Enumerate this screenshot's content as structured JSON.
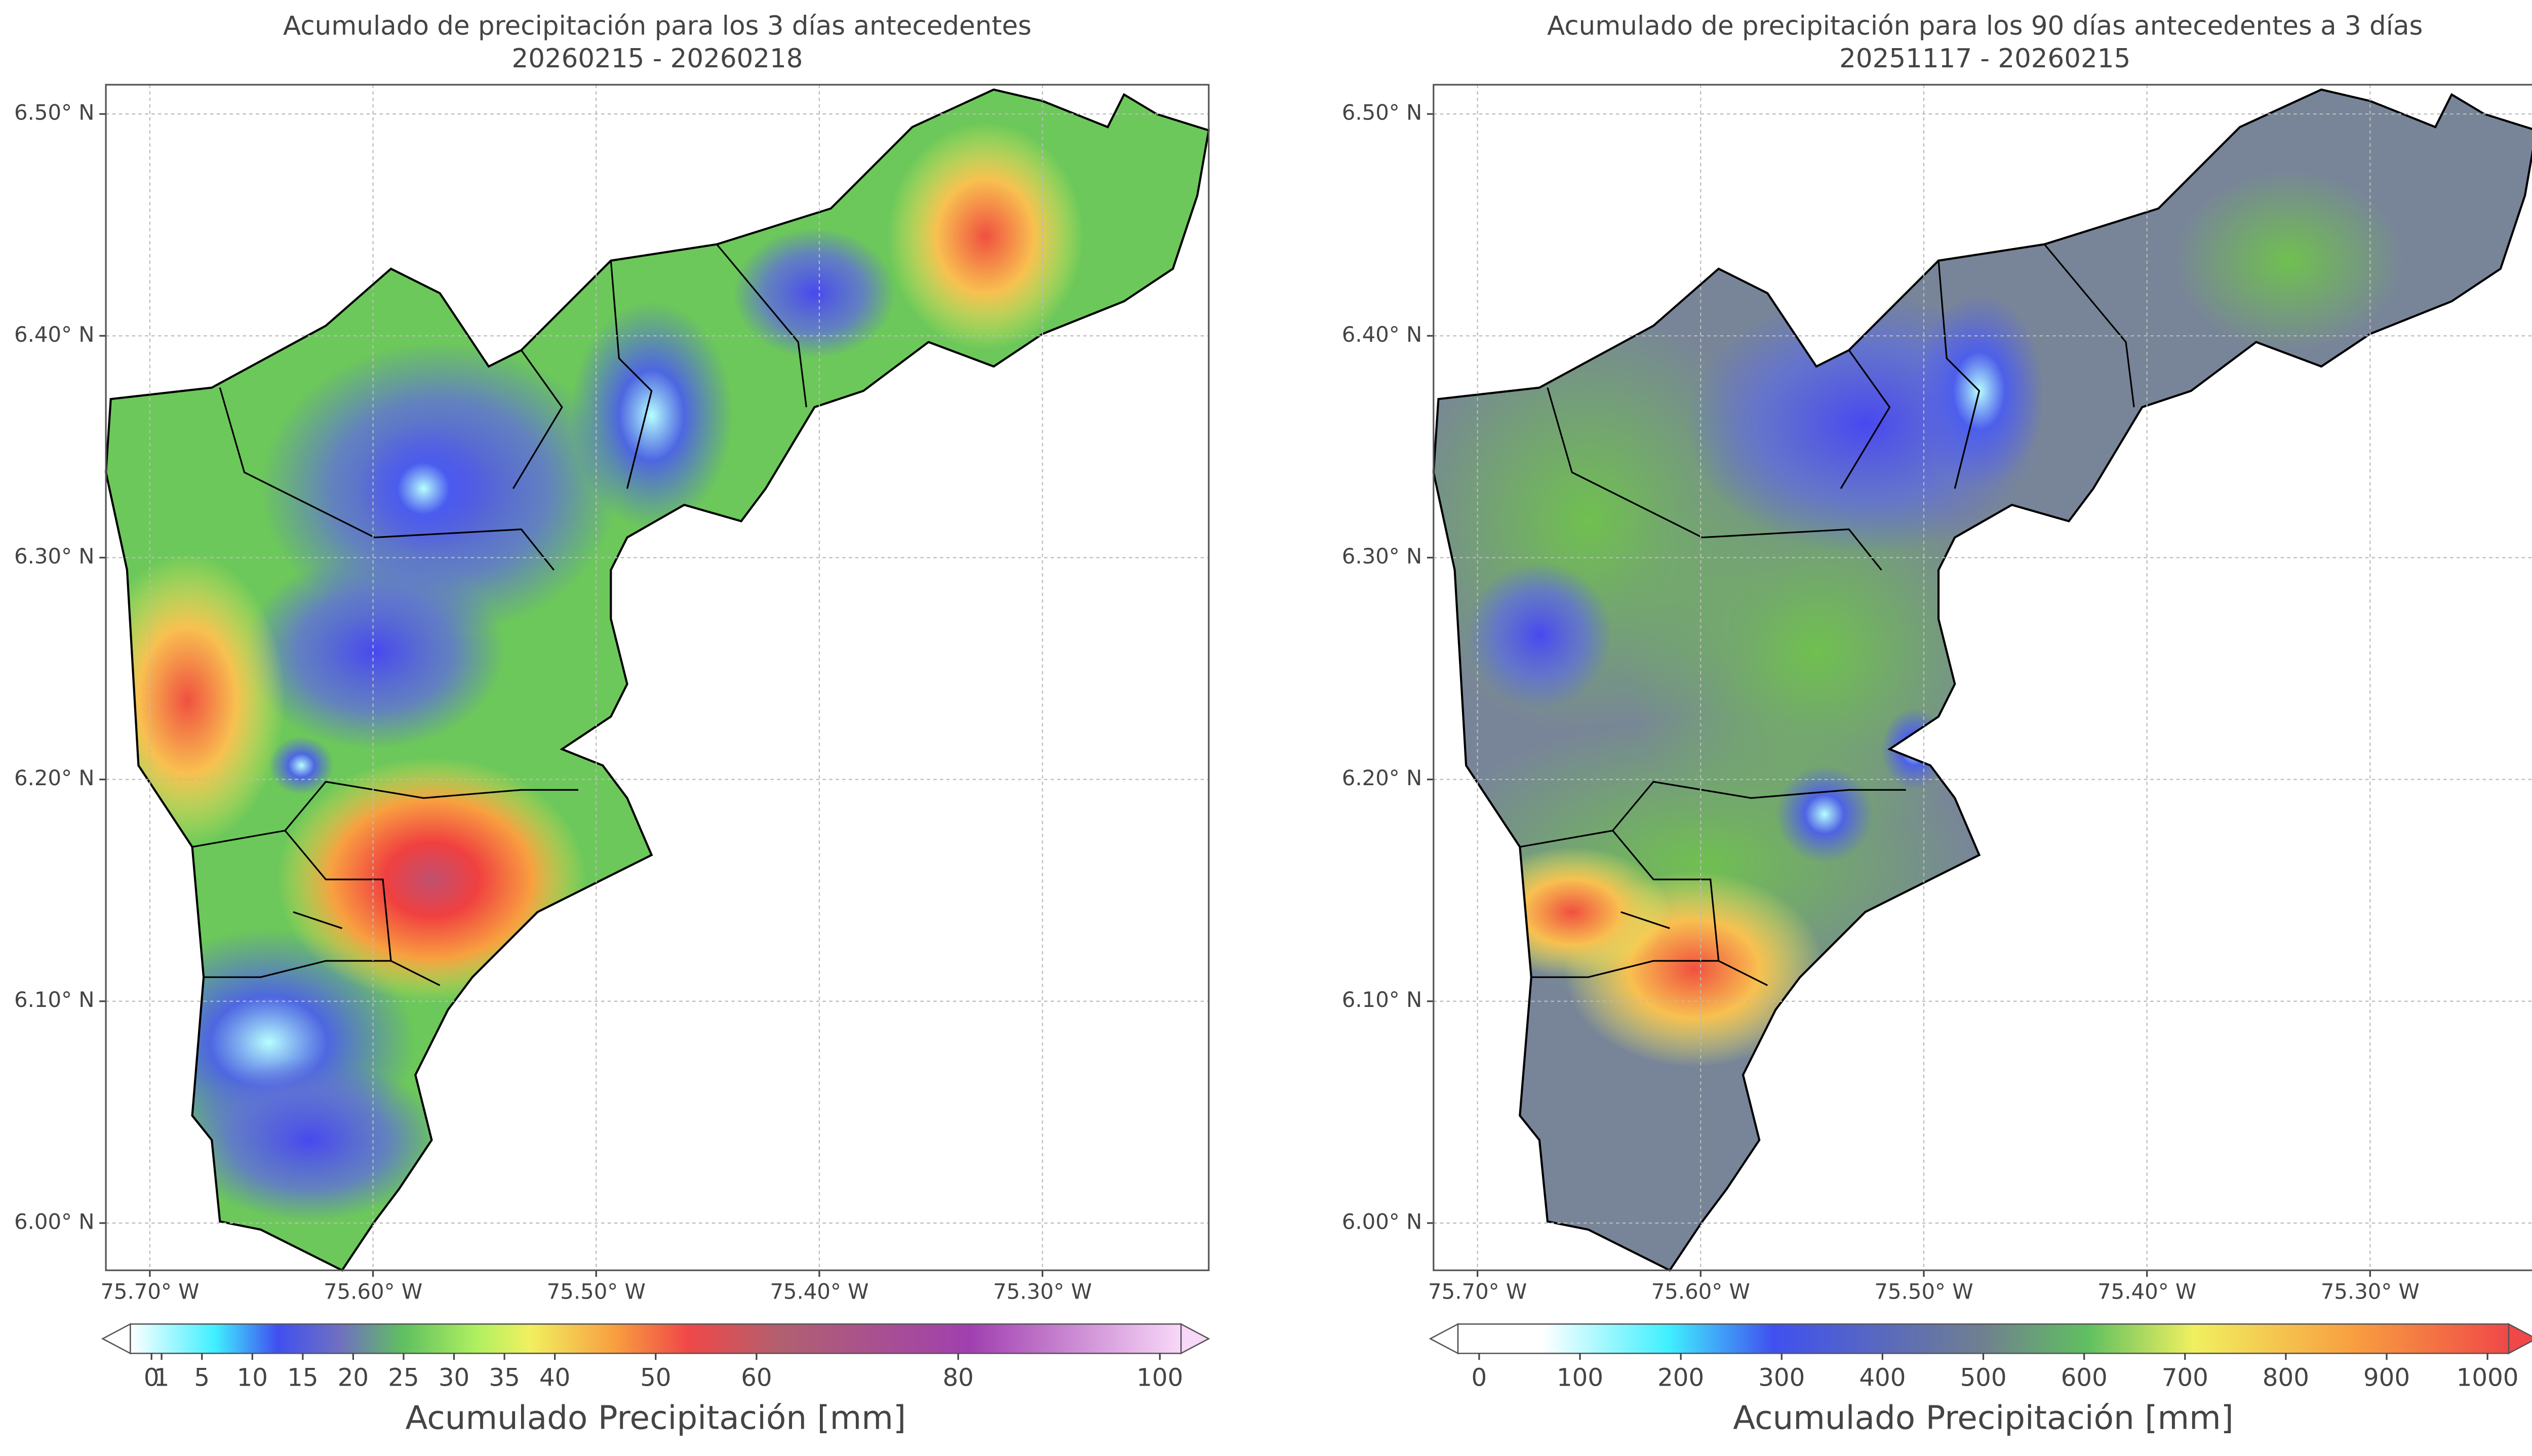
{
  "maps": [
    {
      "title": "Acumulado de precipitación para los 3 días antecedentes",
      "subtitle": "20260215 - 20260218",
      "xlim": [
        -75.7197,
        -75.2255
      ],
      "ylim": [
        5.9787,
        6.5132
      ],
      "xticks": [
        {
          "value": -75.7,
          "label": "75.70° W"
        },
        {
          "value": -75.6,
          "label": "75.60° W"
        },
        {
          "value": -75.5,
          "label": "75.50° W"
        },
        {
          "value": -75.4,
          "label": "75.40° W"
        },
        {
          "value": -75.3,
          "label": "75.30° W"
        }
      ],
      "yticks": [
        {
          "value": 6.0,
          "label": "6.00° N"
        },
        {
          "value": 6.1,
          "label": "6.10° N"
        },
        {
          "value": 6.2,
          "label": "6.20° N"
        },
        {
          "value": 6.3,
          "label": "6.30° N"
        },
        {
          "value": 6.4,
          "label": "6.40° N"
        },
        {
          "value": 6.5,
          "label": "6.50° N"
        }
      ],
      "colorbar": {
        "label": "Acumulado Precipitación [mm]",
        "lim": [
          0,
          100
        ],
        "ticks": [
          0,
          1,
          5,
          10,
          15,
          20,
          25,
          30,
          35,
          40,
          50,
          60,
          80,
          100
        ]
      }
    },
    {
      "title": "Acumulado de precipitación para los 90 días antecedentes a 3 días",
      "subtitle": "20251117 - 20260215",
      "xlim": [
        -75.7197,
        -75.2255
      ],
      "ylim": [
        5.9787,
        6.5132
      ],
      "xticks": [
        {
          "value": -75.7,
          "label": "75.70° W"
        },
        {
          "value": -75.6,
          "label": "75.60° W"
        },
        {
          "value": -75.5,
          "label": "75.50° W"
        },
        {
          "value": -75.4,
          "label": "75.40° W"
        },
        {
          "value": -75.3,
          "label": "75.30° W"
        }
      ],
      "yticks": [
        {
          "value": 6.0,
          "label": "6.00° N"
        },
        {
          "value": 6.1,
          "label": "6.10° N"
        },
        {
          "value": 6.2,
          "label": "6.20° N"
        },
        {
          "value": 6.3,
          "label": "6.30° N"
        },
        {
          "value": 6.4,
          "label": "6.40° N"
        },
        {
          "value": 6.5,
          "label": "6.50° N"
        }
      ],
      "colorbar": {
        "label": "Acumulado Precipitación [mm]",
        "lim": [
          0,
          1000
        ],
        "ticks": [
          0,
          100,
          200,
          300,
          400,
          500,
          600,
          700,
          800,
          900,
          1000
        ]
      }
    }
  ]
}
